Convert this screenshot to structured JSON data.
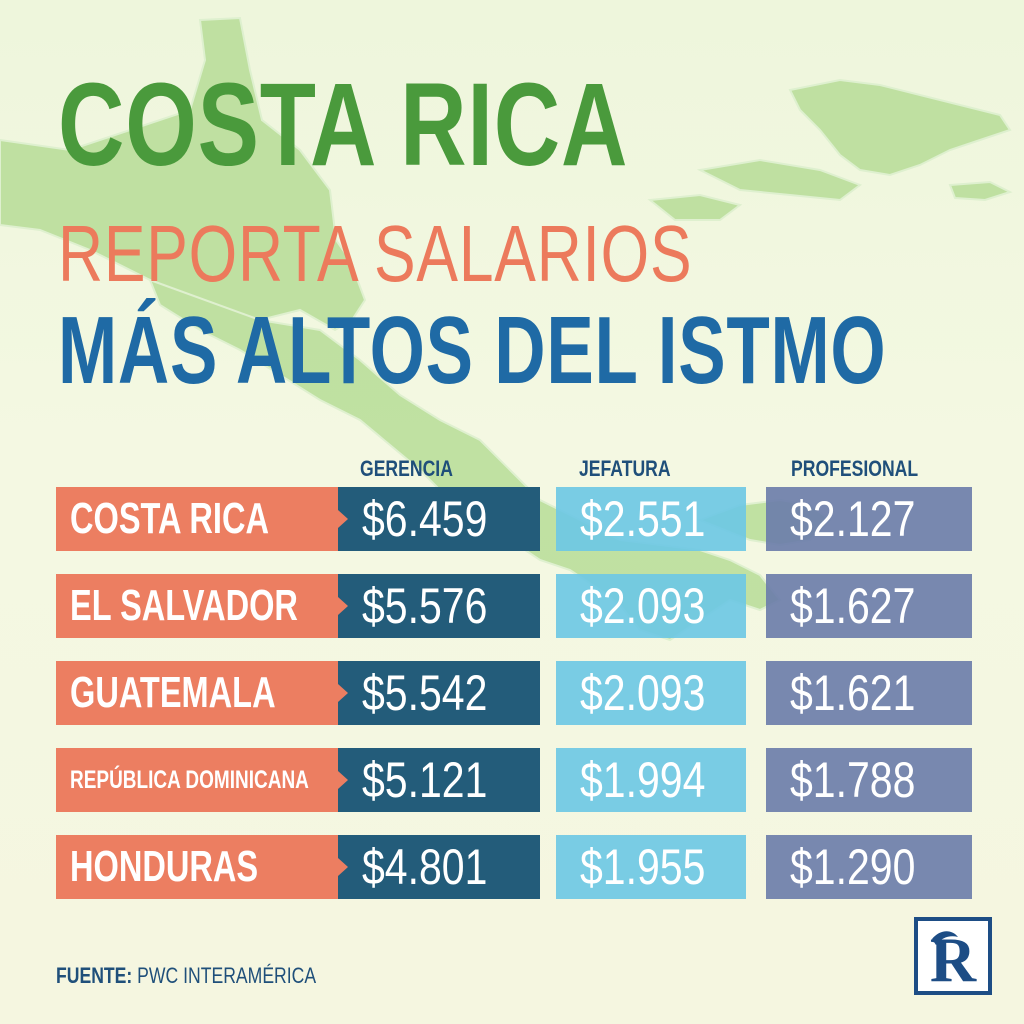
{
  "title": {
    "line1": "COSTA RICA",
    "line2": "REPORTA SALARIOS",
    "line3": "MÁS ALTOS DEL ISTMO"
  },
  "columns": [
    "GERENCIA",
    "JEFATURA",
    "PROFESIONAL"
  ],
  "rows": [
    {
      "country": "COSTA RICA",
      "gerencia": "$6.459",
      "jefatura": "$2.551",
      "profesional": "$2.127"
    },
    {
      "country": "EL SALVADOR",
      "gerencia": "$5.576",
      "jefatura": "$2.093",
      "profesional": "$1.627"
    },
    {
      "country": "GUATEMALA",
      "gerencia": "$5.542",
      "jefatura": "$2.093",
      "profesional": "$1.621"
    },
    {
      "country": "REPÚBLICA DOMINICANA",
      "gerencia": "$5.121",
      "jefatura": "$1.994",
      "profesional": "$1.788"
    },
    {
      "country": "HONDURAS",
      "gerencia": "$4.801",
      "jefatura": "$1.955",
      "profesional": "$1.290"
    }
  ],
  "source": {
    "label": "FUENTE:",
    "text": "PWC INTERAMÉRICA"
  },
  "logo": {
    "letter": "R",
    "icon": "r-logo-icon"
  },
  "colors": {
    "title_green": "#4a9a3c",
    "title_orange": "#ec7a5c",
    "title_blue": "#1f6aa5",
    "country_bg": "#ec7e61",
    "gerencia_bg": "#235c7a",
    "jefatura_bg": "#6ec8e4",
    "profesional_bg": "#6c7eaa",
    "map_green": "#a9d98e"
  }
}
